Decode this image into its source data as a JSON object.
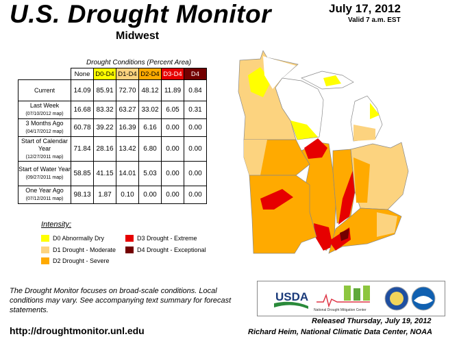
{
  "header": {
    "title": "U.S. Drought Monitor",
    "subtitle": "Midwest",
    "date": "July 17, 2012",
    "valid": "Valid 7 a.m. EST"
  },
  "table": {
    "caption": "Drought Conditions (Percent Area)",
    "columns": [
      "None",
      "D0-D4",
      "D1-D4",
      "D2-D4",
      "D3-D4",
      "D4"
    ],
    "column_colors": [
      "#ffffff",
      "#ffff00",
      "#fcd37f",
      "#ffaa00",
      "#e60000",
      "#730000"
    ],
    "column_text_colors": [
      "#000000",
      "#000000",
      "#000000",
      "#000000",
      "#ffffff",
      "#ffffff"
    ],
    "rows": [
      {
        "label": "Current",
        "sub": "",
        "values": [
          "14.09",
          "85.91",
          "72.70",
          "48.12",
          "11.89",
          "0.84"
        ]
      },
      {
        "label": "Last Week",
        "sub": "(07/10/2012 map)",
        "values": [
          "16.68",
          "83.32",
          "63.27",
          "33.02",
          "6.05",
          "0.31"
        ]
      },
      {
        "label": "3 Months Ago",
        "sub": "(04/17/2012 map)",
        "values": [
          "60.78",
          "39.22",
          "16.39",
          "6.16",
          "0.00",
          "0.00"
        ]
      },
      {
        "label": "Start of Calendar Year",
        "sub": "(12/27/2011 map)",
        "values": [
          "71.84",
          "28.16",
          "13.42",
          "6.80",
          "0.00",
          "0.00"
        ]
      },
      {
        "label": "Start of Water Year",
        "sub": "(09/27/2011 map)",
        "values": [
          "58.85",
          "41.15",
          "14.01",
          "5.03",
          "0.00",
          "0.00"
        ]
      },
      {
        "label": "One Year Ago",
        "sub": "(07/12/2011 map)",
        "values": [
          "98.13",
          "1.87",
          "0.10",
          "0.00",
          "0.00",
          "0.00"
        ]
      }
    ]
  },
  "legend": {
    "title": "Intensity:",
    "items": [
      {
        "label": "D0 Abnormally Dry",
        "color": "#ffff00"
      },
      {
        "label": "D1 Drought - Moderate",
        "color": "#fcd37f"
      },
      {
        "label": "D2 Drought - Severe",
        "color": "#ffaa00"
      },
      {
        "label": "D3 Drought - Extreme",
        "color": "#e60000"
      },
      {
        "label": "D4 Drought - Exceptional",
        "color": "#730000"
      }
    ]
  },
  "footer": {
    "note": "The Drought Monitor focuses on broad-scale conditions. Local conditions may vary. See accompanying text summary for forecast statements.",
    "url": "http://droughtmonitor.unl.edu",
    "released": "Released Thursday, July 19, 2012",
    "author": "Richard Heim, National Climatic Data Center, NOAA"
  },
  "logos": {
    "usda": "USDA",
    "ndmc": "National Drought Mitigation Center"
  }
}
